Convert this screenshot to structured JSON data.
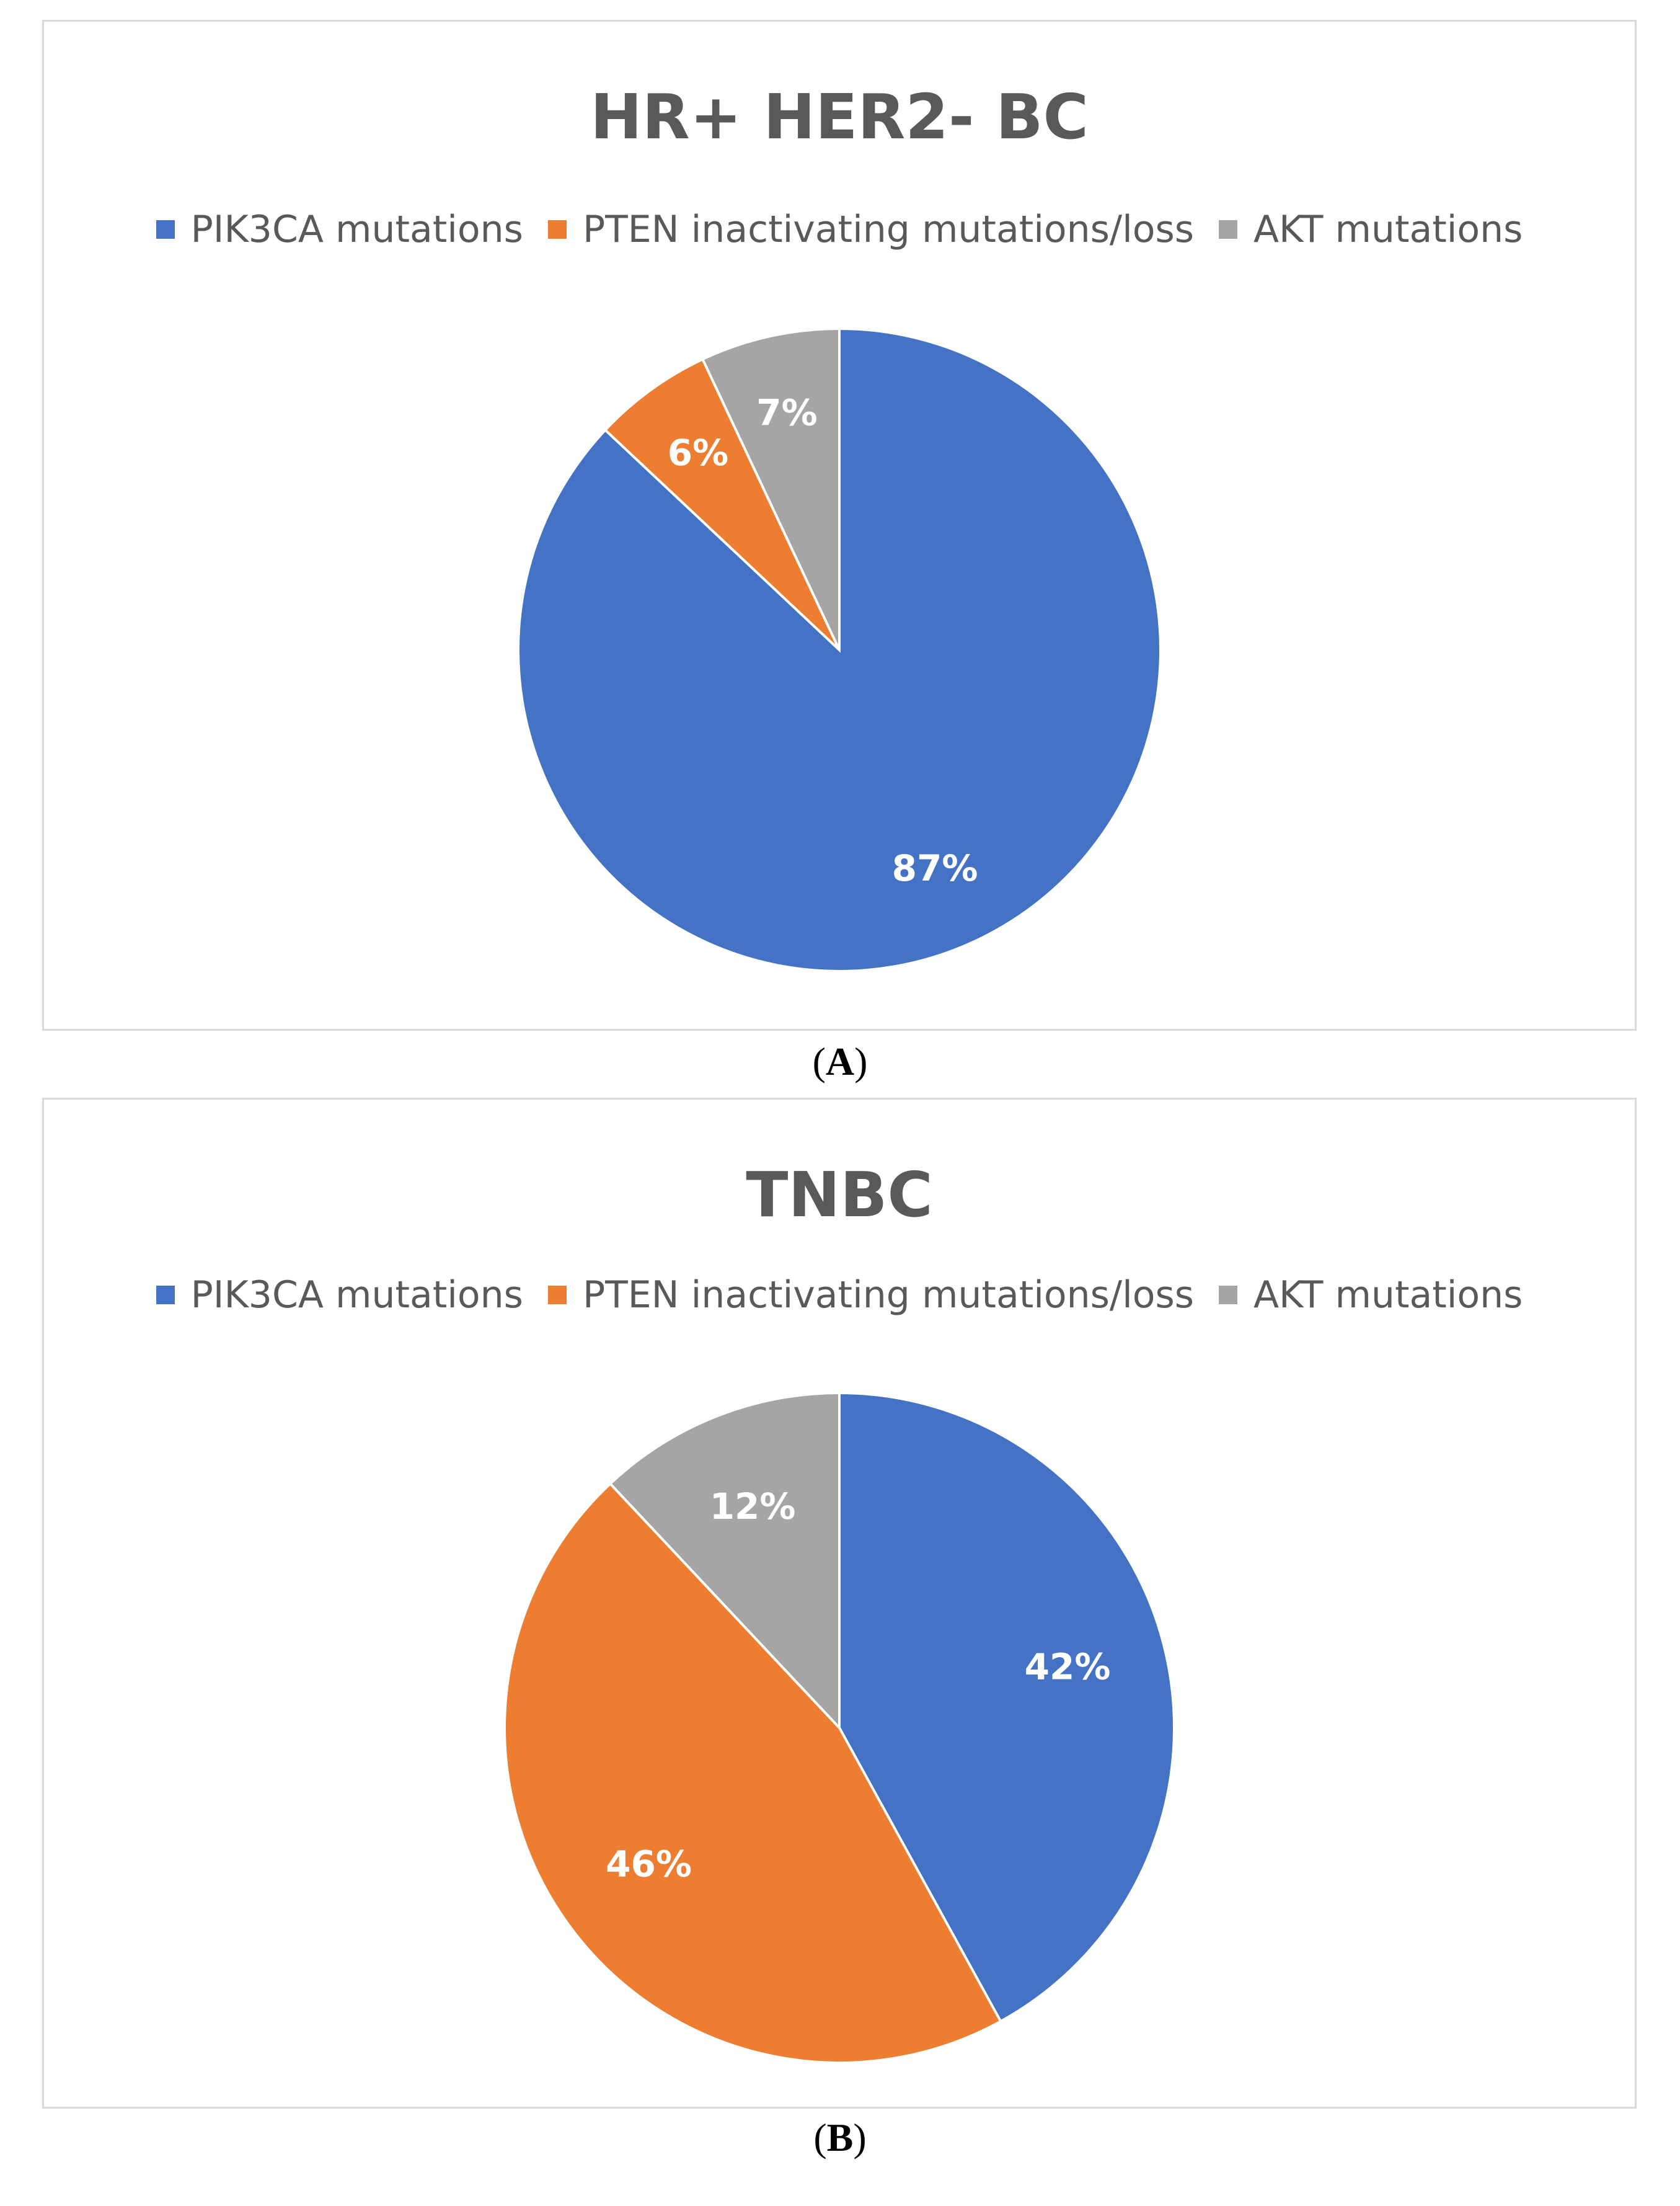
{
  "chart_data": [
    {
      "type": "pie",
      "title": "HR+ HER2- BC",
      "categories": [
        "PIK3CA mutations",
        "PTEN inactivating mutations/loss",
        "AKT mutations"
      ],
      "values": [
        87,
        6,
        7
      ],
      "data_labels": [
        "87%",
        "6%",
        "7%"
      ],
      "colors": [
        "#4472C4",
        "#ED7D31",
        "#A5A5A5"
      ],
      "legend_position": "top",
      "caption": {
        "open": "(",
        "letter": "A",
        "close": ")"
      }
    },
    {
      "type": "pie",
      "title": "TNBC",
      "categories": [
        "PIK3CA mutations",
        "PTEN inactivating mutations/loss",
        "AKT mutations"
      ],
      "values": [
        42,
        46,
        12
      ],
      "data_labels": [
        "42%",
        "46%",
        "12%"
      ],
      "colors": [
        "#4472C4",
        "#ED7D31",
        "#A5A5A5"
      ],
      "legend_position": "top",
      "caption": {
        "open": "(",
        "letter": "B",
        "close": ")"
      }
    }
  ]
}
